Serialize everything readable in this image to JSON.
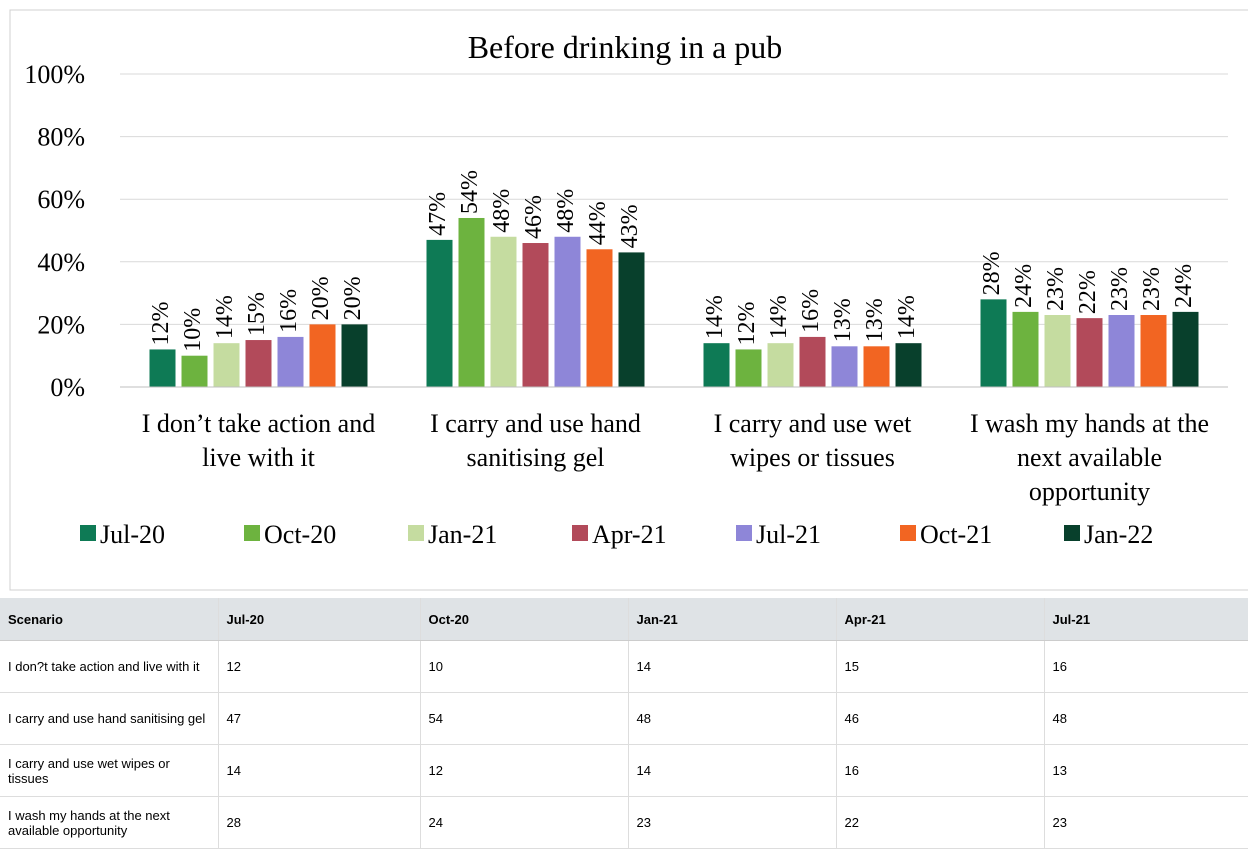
{
  "chart_data": {
    "type": "bar",
    "title": "Before drinking in a pub",
    "categories": [
      "I don’t take action and live with it",
      "I carry and use hand sanitising gel",
      "I carry and use wet wipes or tissues",
      "I wash my hands at the next available opportunity"
    ],
    "series": [
      {
        "name": "Jul-20",
        "color": "#0e7a55",
        "values": [
          12,
          47,
          14,
          28
        ],
        "value_labels": [
          "12%",
          "47%",
          "14%",
          "28%"
        ]
      },
      {
        "name": "Oct-20",
        "color": "#6db33f",
        "values": [
          10,
          54,
          12,
          24
        ],
        "value_labels": [
          "10%",
          "54%",
          "12%",
          "24%"
        ]
      },
      {
        "name": "Jan-21",
        "color": "#c5dca0",
        "values": [
          14,
          48,
          14,
          23
        ],
        "value_labels": [
          "14%",
          "48%",
          "14%",
          "23%"
        ]
      },
      {
        "name": "Apr-21",
        "color": "#b24a5a",
        "values": [
          15,
          46,
          16,
          22
        ],
        "value_labels": [
          "15%",
          "46%",
          "16%",
          "22%"
        ]
      },
      {
        "name": "Jul-21",
        "color": "#8e86d8",
        "values": [
          16,
          48,
          13,
          23
        ],
        "value_labels": [
          "16%",
          "48%",
          "13%",
          "23%"
        ]
      },
      {
        "name": "Oct-21",
        "color": "#f26522",
        "values": [
          20,
          44,
          13,
          23
        ],
        "value_labels": [
          "20%",
          "44%",
          "13%",
          "23%"
        ]
      },
      {
        "name": "Jan-22",
        "color": "#08402c",
        "values": [
          20,
          43,
          14,
          24
        ],
        "value_labels": [
          "20%",
          "43%",
          "14%",
          "24%"
        ]
      }
    ],
    "ylim": [
      0,
      100
    ],
    "yticks": [
      {
        "value": 0,
        "label": "0%"
      },
      {
        "value": 20,
        "label": "20%"
      },
      {
        "value": 40,
        "label": "40%"
      },
      {
        "value": 60,
        "label": "60%"
      },
      {
        "value": 80,
        "label": "80%"
      },
      {
        "value": 100,
        "label": "100%"
      }
    ],
    "grid": true,
    "legend": "bottom"
  },
  "table": {
    "header": [
      "Scenario",
      "Jul-20",
      "Oct-20",
      "Jan-21",
      "Apr-21",
      "Jul-21"
    ],
    "rows": [
      [
        "I don?t take action and live with it",
        12,
        10,
        14,
        15,
        16
      ],
      [
        "I carry and use hand sanitising gel",
        47,
        54,
        48,
        46,
        48
      ],
      [
        "I carry and use wet wipes or tissues",
        14,
        12,
        14,
        16,
        13
      ],
      [
        "I wash my hands at the next available opportunity",
        28,
        24,
        23,
        22,
        23
      ]
    ]
  }
}
